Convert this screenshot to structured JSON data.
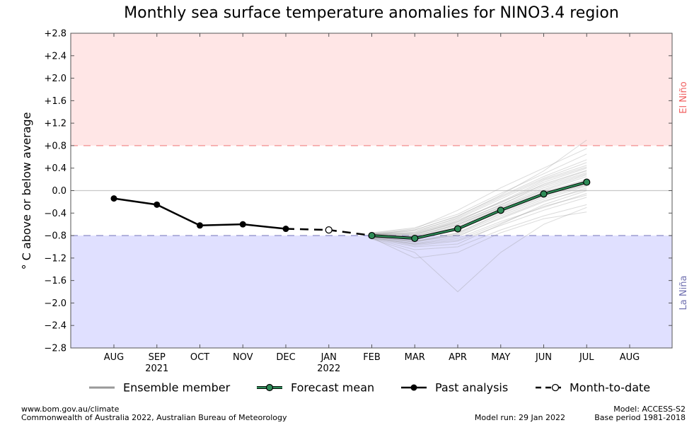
{
  "chart_data": {
    "type": "line",
    "title": "Monthly sea surface temperature anomalies for NINO3.4 region",
    "ylabel": "° C above or below average",
    "ylim": [
      -2.8,
      2.8
    ],
    "yticks": [
      "+2.8",
      "+2.4",
      "+2.0",
      "+1.6",
      "+1.2",
      "+0.8",
      "+0.4",
      "0.0",
      "−0.4",
      "−0.8",
      "−1.2",
      "−1.6",
      "−2.0",
      "−2.4",
      "−2.8"
    ],
    "ytick_values": [
      2.8,
      2.4,
      2.0,
      1.6,
      1.2,
      0.8,
      0.4,
      0.0,
      -0.4,
      -0.8,
      -1.2,
      -1.6,
      -2.0,
      -2.4,
      -2.8
    ],
    "months": [
      "AUG",
      "SEP",
      "OCT",
      "NOV",
      "DEC",
      "JAN",
      "FEB",
      "MAR",
      "APR",
      "MAY",
      "JUN",
      "JUL",
      "AUG"
    ],
    "year_labels": [
      {
        "month_index": 1,
        "label": "2021"
      },
      {
        "month_index": 5,
        "label": "2022"
      }
    ],
    "thresholds": {
      "el_nino": 0.8,
      "la_nina": -0.8,
      "el_nino_label": "El Niño",
      "la_nina_label": "La Niña",
      "el_nino_color": "#ffe6e6",
      "la_nina_color": "#e0e0ff",
      "el_nino_line_color": "#f08080",
      "la_nina_line_color": "#8080c0",
      "el_nino_text_color": "#f06060",
      "la_nina_text_color": "#7070b0"
    },
    "series": [
      {
        "name": "Past analysis",
        "color": "#000000",
        "x": [
          0,
          1,
          2,
          3,
          4
        ],
        "values": [
          -0.14,
          -0.25,
          -0.62,
          -0.6,
          -0.68
        ]
      },
      {
        "name": "Month-to-date",
        "color": "#000000",
        "x": [
          4,
          5,
          6
        ],
        "values": [
          -0.68,
          -0.7,
          -0.8
        ]
      },
      {
        "name": "Forecast mean",
        "color": "#2e8b57",
        "x": [
          6,
          7,
          8,
          9,
          10,
          11
        ],
        "values": [
          -0.8,
          -0.85,
          -0.68,
          -0.35,
          -0.06,
          0.15
        ]
      }
    ],
    "ensemble": {
      "name": "Ensemble member",
      "color": "#999999",
      "x": [
        6,
        7,
        8,
        9,
        10,
        11
      ],
      "members": [
        [
          -0.76,
          -0.78,
          -0.55,
          -0.2,
          0.1,
          0.35
        ],
        [
          -0.84,
          -0.95,
          -0.85,
          -0.55,
          -0.3,
          -0.05
        ],
        [
          -0.78,
          -0.7,
          -0.45,
          -0.1,
          0.25,
          0.55
        ],
        [
          -0.82,
          -0.9,
          -0.8,
          -0.5,
          -0.2,
          0.05
        ],
        [
          -0.8,
          -0.82,
          -0.62,
          -0.3,
          0.0,
          0.25
        ],
        [
          -0.85,
          -1.05,
          -1.0,
          -0.7,
          -0.45,
          -0.25
        ],
        [
          -0.77,
          -0.72,
          -0.5,
          -0.15,
          0.2,
          0.45
        ],
        [
          -0.83,
          -0.9,
          -0.75,
          -0.4,
          -0.1,
          0.15
        ],
        [
          -0.79,
          -0.8,
          -0.6,
          -0.28,
          0.05,
          0.3
        ],
        [
          -0.86,
          -1.1,
          -1.8,
          -1.1,
          -0.6,
          -0.3
        ],
        [
          -0.81,
          -0.88,
          -0.7,
          -0.38,
          -0.08,
          0.1
        ],
        [
          -0.78,
          -0.75,
          -0.52,
          -0.22,
          0.15,
          0.4
        ],
        [
          -0.84,
          -0.98,
          -0.9,
          -0.62,
          -0.35,
          -0.12
        ],
        [
          -0.8,
          -0.83,
          -0.64,
          -0.32,
          -0.02,
          0.2
        ],
        [
          -0.76,
          -0.68,
          -0.35,
          0.05,
          0.4,
          0.75
        ],
        [
          -0.82,
          -0.92,
          -0.78,
          -0.45,
          -0.15,
          0.08
        ],
        [
          -0.79,
          -0.77,
          -0.58,
          -0.25,
          0.08,
          0.32
        ],
        [
          -0.85,
          -1.0,
          -0.95,
          -0.6,
          -0.25,
          0.0
        ],
        [
          -0.8,
          -0.85,
          -0.66,
          -0.33,
          -0.04,
          0.18
        ],
        [
          -0.77,
          -0.74,
          -0.48,
          -0.12,
          0.22,
          0.5
        ],
        [
          -0.83,
          -0.94,
          -0.82,
          -0.48,
          -0.18,
          0.02
        ],
        [
          -0.78,
          -0.79,
          -0.56,
          -0.26,
          0.12,
          0.36
        ],
        [
          -0.81,
          -0.86,
          -0.69,
          -0.36,
          -0.06,
          0.12
        ],
        [
          -0.75,
          -0.66,
          -0.42,
          -0.05,
          0.3,
          0.65
        ],
        [
          -0.84,
          -1.2,
          -1.1,
          -0.75,
          -0.5,
          -0.38
        ],
        [
          -0.8,
          -0.81,
          -0.6,
          -0.3,
          0.02,
          0.28
        ],
        [
          -0.79,
          -0.76,
          -0.54,
          -0.2,
          0.18,
          0.42
        ],
        [
          -0.82,
          -0.91,
          -0.76,
          -0.42,
          -0.12,
          0.1
        ],
        [
          -0.77,
          -0.7,
          -0.46,
          -0.08,
          0.35,
          0.9
        ],
        [
          -0.83,
          -0.96,
          -0.88,
          -0.58,
          -0.28,
          -0.08
        ]
      ]
    },
    "legend": {
      "placement": "bottom",
      "entries": [
        {
          "label": "Ensemble member",
          "style": "ensemble"
        },
        {
          "label": "Forecast mean",
          "style": "forecast"
        },
        {
          "label": "Past analysis",
          "style": "past"
        },
        {
          "label": "Month-to-date",
          "style": "mtd"
        }
      ]
    },
    "grid": false
  },
  "footer": {
    "left_line1": "www.bom.gov.au/climate",
    "left_line2": "Commonwealth of Australia 2022, Australian Bureau of Meteorology",
    "model_run": "Model run: 29 Jan 2022",
    "model": "Model: ACCESS-S2",
    "base_period": "Base period 1981-2018"
  }
}
